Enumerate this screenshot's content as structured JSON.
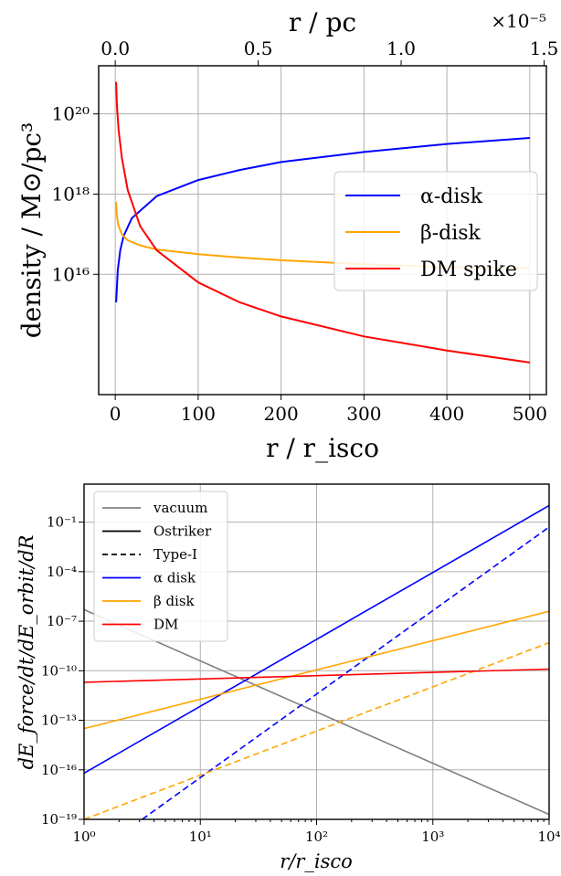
{
  "chart_data": [
    {
      "type": "line",
      "x_scale": "linear",
      "y_scale": "log",
      "xlabel": "r / r_isco",
      "x2label": "r / pc",
      "x2_multiplier": "×10⁻⁵",
      "ylabel": "density / M⊙/pc³",
      "xlim": [
        -20,
        520
      ],
      "ylim_log10": [
        13.0,
        21.2
      ],
      "x_ticks": [
        "0",
        "100",
        "200",
        "300",
        "400",
        "500"
      ],
      "x2_ticks": [
        "0.0",
        "0.5",
        "1.0",
        "1.5"
      ],
      "y_ticks": [
        "10²⁰",
        "10¹⁸",
        "10¹⁶"
      ],
      "grid": true,
      "legend_position": "right",
      "series": [
        {
          "name": "α-disk",
          "color": "#0000ff",
          "x": [
            1,
            3,
            6,
            10,
            20,
            50,
            100,
            150,
            200,
            300,
            400,
            500
          ],
          "log10_y": [
            15.3,
            16.1,
            16.6,
            16.95,
            17.4,
            17.95,
            18.35,
            18.6,
            18.8,
            19.05,
            19.25,
            19.4
          ]
        },
        {
          "name": "β-disk",
          "color": "#ffa500",
          "x": [
            1,
            2,
            4,
            8,
            15,
            30,
            50,
            100,
            150,
            200,
            300,
            400,
            500
          ],
          "log10_y": [
            17.8,
            17.45,
            17.2,
            17.0,
            16.85,
            16.72,
            16.62,
            16.5,
            16.42,
            16.35,
            16.25,
            16.18,
            16.15
          ]
        },
        {
          "name": "DM spike",
          "color": "#ff0000",
          "x": [
            1,
            2,
            4,
            8,
            15,
            30,
            50,
            100,
            150,
            200,
            300,
            400,
            500
          ],
          "log10_y": [
            20.8,
            20.2,
            19.6,
            18.9,
            18.1,
            17.2,
            16.6,
            15.8,
            15.3,
            14.95,
            14.45,
            14.1,
            13.8
          ]
        }
      ]
    },
    {
      "type": "line",
      "x_scale": "log",
      "y_scale": "log",
      "xlabel": "r/r_isco",
      "ylabel": "dE_force/dt/dE_orbit/dR",
      "xlim_log10": [
        0,
        4
      ],
      "ylim_log10": [
        -19,
        1.3
      ],
      "x_ticks": [
        "10⁰",
        "10¹",
        "10²",
        "10³",
        "10⁴"
      ],
      "y_ticks": [
        "10⁻¹",
        "10⁻⁴",
        "10⁻⁷",
        "10⁻¹⁰",
        "10⁻¹³",
        "10⁻¹⁶",
        "10⁻¹⁹"
      ],
      "grid": true,
      "legend_position": "top-left",
      "legend": [
        {
          "name": "vacuum",
          "color": "#808080",
          "dash": "solid"
        },
        {
          "name": "Ostriker",
          "color": "#000000",
          "dash": "solid"
        },
        {
          "name": "Type-I",
          "color": "#000000",
          "dash": "dashed"
        },
        {
          "name": "α disk",
          "color": "#0000ff",
          "dash": "solid"
        },
        {
          "name": "β disk",
          "color": "#ffa500",
          "dash": "solid"
        },
        {
          "name": "DM",
          "color": "#ff0000",
          "dash": "solid"
        }
      ],
      "series": [
        {
          "color": "#808080",
          "dash": "solid",
          "log10_x": [
            0,
            4
          ],
          "log10_y": [
            -6.3,
            -18.7
          ]
        },
        {
          "color": "#0000ff",
          "dash": "solid",
          "log10_x": [
            0,
            4
          ],
          "log10_y": [
            -16.2,
            0.0
          ]
        },
        {
          "color": "#0000ff",
          "dash": "dashed",
          "log10_x": [
            0.5,
            4
          ],
          "log10_y": [
            -19.0,
            -1.3
          ]
        },
        {
          "color": "#ffa500",
          "dash": "solid",
          "log10_x": [
            0,
            4
          ],
          "log10_y": [
            -13.5,
            -6.4
          ]
        },
        {
          "color": "#ffa500",
          "dash": "dashed",
          "log10_x": [
            0,
            4
          ],
          "log10_y": [
            -19.0,
            -8.3
          ]
        },
        {
          "color": "#ff0000",
          "dash": "solid",
          "log10_x": [
            0,
            4
          ],
          "log10_y": [
            -10.7,
            -9.9
          ]
        }
      ]
    }
  ]
}
